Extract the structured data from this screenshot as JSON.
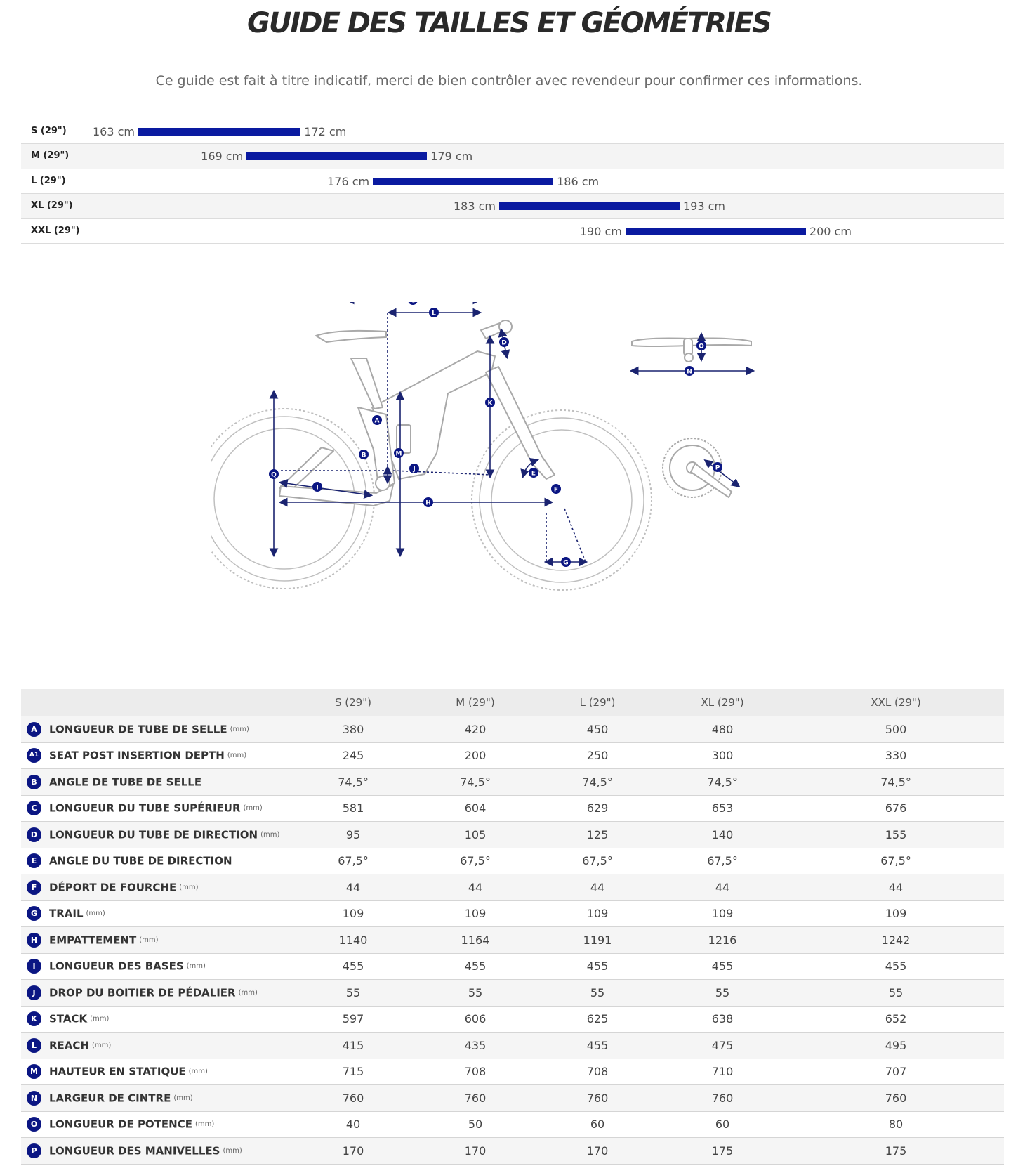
{
  "page": {
    "title": "GUIDE DES TAILLES ET GÉOMÉTRIES",
    "subtitle": "Ce guide est fait à titre indicatif, merci de bien contrôler avec revendeur pour confirmer ces informations."
  },
  "size_guide": [
    {
      "label": "S (29\")",
      "min": "163 cm",
      "max": "172 cm"
    },
    {
      "label": "M (29\")",
      "min": "169 cm",
      "max": "179 cm"
    },
    {
      "label": "L (29\")",
      "min": "176 cm",
      "max": "186 cm"
    },
    {
      "label": "XL (29\")",
      "min": "183 cm",
      "max": "193 cm"
    },
    {
      "label": "XXL (29\")",
      "min": "190 cm",
      "max": "200 cm"
    }
  ],
  "diagram": {
    "markers": [
      "A",
      "B",
      "C",
      "D",
      "E",
      "F",
      "G",
      "H",
      "I",
      "J",
      "K",
      "L",
      "M",
      "N",
      "O",
      "P",
      "Q"
    ]
  },
  "geometry_table": {
    "columns": [
      "S (29\")",
      "M (29\")",
      "L (29\")",
      "XL (29\")",
      "XXL (29\")"
    ],
    "rows": [
      {
        "code": "A",
        "name": "LONGUEUR DE TUBE DE SELLE",
        "unit": "(mm)",
        "values": [
          "380",
          "420",
          "450",
          "480",
          "500"
        ]
      },
      {
        "code": "A1",
        "name": "SEAT POST INSERTION DEPTH",
        "unit": "(mm)",
        "values": [
          "245",
          "200",
          "250",
          "300",
          "330"
        ]
      },
      {
        "code": "B",
        "name": "ANGLE DE TUBE DE SELLE",
        "unit": "",
        "values": [
          "74,5°",
          "74,5°",
          "74,5°",
          "74,5°",
          "74,5°"
        ]
      },
      {
        "code": "C",
        "name": "LONGUEUR DU TUBE SUPÉRIEUR",
        "unit": "(mm)",
        "values": [
          "581",
          "604",
          "629",
          "653",
          "676"
        ]
      },
      {
        "code": "D",
        "name": "LONGUEUR DU TUBE DE DIRECTION",
        "unit": "(mm)",
        "values": [
          "95",
          "105",
          "125",
          "140",
          "155"
        ]
      },
      {
        "code": "E",
        "name": "ANGLE DU TUBE DE DIRECTION",
        "unit": "",
        "values": [
          "67,5°",
          "67,5°",
          "67,5°",
          "67,5°",
          "67,5°"
        ]
      },
      {
        "code": "F",
        "name": "DÉPORT DE FOURCHE",
        "unit": "(mm)",
        "values": [
          "44",
          "44",
          "44",
          "44",
          "44"
        ]
      },
      {
        "code": "G",
        "name": "TRAIL",
        "unit": "(mm)",
        "values": [
          "109",
          "109",
          "109",
          "109",
          "109"
        ]
      },
      {
        "code": "H",
        "name": "EMPATTEMENT",
        "unit": "(mm)",
        "values": [
          "1140",
          "1164",
          "1191",
          "1216",
          "1242"
        ]
      },
      {
        "code": "I",
        "name": "LONGUEUR DES BASES",
        "unit": "(mm)",
        "values": [
          "455",
          "455",
          "455",
          "455",
          "455"
        ]
      },
      {
        "code": "J",
        "name": "DROP DU BOITIER DE PÉDALIER",
        "unit": "(mm)",
        "values": [
          "55",
          "55",
          "55",
          "55",
          "55"
        ]
      },
      {
        "code": "K",
        "name": "STACK",
        "unit": "(mm)",
        "values": [
          "597",
          "606",
          "625",
          "638",
          "652"
        ]
      },
      {
        "code": "L",
        "name": "REACH",
        "unit": "(mm)",
        "values": [
          "415",
          "435",
          "455",
          "475",
          "495"
        ]
      },
      {
        "code": "M",
        "name": "HAUTEUR EN STATIQUE",
        "unit": "(mm)",
        "values": [
          "715",
          "708",
          "708",
          "710",
          "707"
        ]
      },
      {
        "code": "N",
        "name": "LARGEUR DE CINTRE",
        "unit": "(mm)",
        "values": [
          "760",
          "760",
          "760",
          "760",
          "760"
        ]
      },
      {
        "code": "O",
        "name": "LONGUEUR DE POTENCE",
        "unit": "(mm)",
        "values": [
          "40",
          "50",
          "60",
          "60",
          "80"
        ]
      },
      {
        "code": "P",
        "name": "LONGUEUR DES MANIVELLES",
        "unit": "(mm)",
        "values": [
          "170",
          "170",
          "170",
          "175",
          "175"
        ]
      }
    ]
  },
  "colors": {
    "accent": "#0a1aa0",
    "badge": "#0b1683",
    "frame": "#b5b5b5"
  },
  "chart_data": {
    "type": "bar",
    "title": "",
    "xlabel": "",
    "ylabel": "",
    "categories": [
      "S (29\")",
      "M (29\")",
      "L (29\")",
      "XL (29\")",
      "XXL (29\")"
    ],
    "ranges_cm": [
      [
        163,
        172
      ],
      [
        169,
        179
      ],
      [
        176,
        186
      ],
      [
        183,
        193
      ],
      [
        190,
        200
      ]
    ],
    "xlim": [
      155,
      205
    ],
    "grid": false
  }
}
